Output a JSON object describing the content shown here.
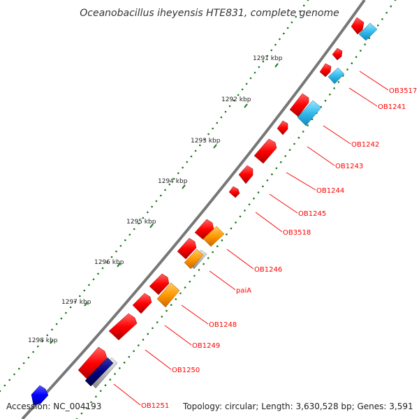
{
  "title": "Oceanobacillus iheyensis HTE831, complete genome",
  "footer": {
    "accession": "Accession: NC_004193",
    "topology": "Topology: circular; Length: 3,630,528 bp; Genes: 3,591"
  },
  "ticks": [
    "1291 kbp",
    "1292 kbp",
    "1293 kbp",
    "1294 kbp",
    "1295 kbp",
    "1296 kbp",
    "1297 kbp",
    "1298 kbp"
  ],
  "gene_labels": [
    "OB3517",
    "OB1241",
    "OB1242",
    "OB1243",
    "OB1244",
    "OB1245",
    "OB3518",
    "OB1246",
    "paiA",
    "OB1248",
    "OB1249",
    "OB1250",
    "OB1251"
  ],
  "colors": {
    "backbone": "#777777",
    "tick_marks": "#1a7a1a",
    "gene_forward": "#ff0000",
    "gene_cds_light": "#33bbee",
    "gene_cds_orange": "#ff9900",
    "gene_cds_navy": "#000080",
    "gene_cds_blue": "#0000ff",
    "gene_cds_gray": "#bbbbbb",
    "label": "#ff0000"
  }
}
